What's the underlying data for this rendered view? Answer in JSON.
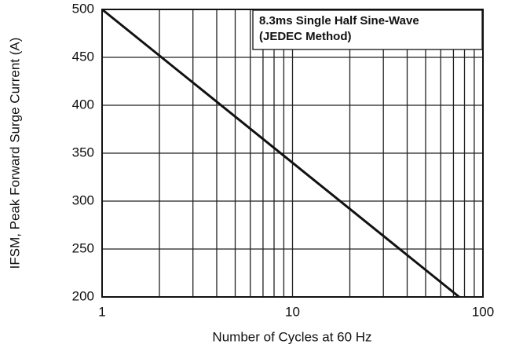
{
  "chart_data": {
    "type": "line",
    "annotation": [
      "8.3ms Single Half Sine-Wave",
      "(JEDEC Method)"
    ],
    "xlabel": "Number of Cycles at 60 Hz",
    "ylabel": "IFSM, Peak Forward Surge Current (A)",
    "xscale": "log",
    "xlim": [
      1,
      100
    ],
    "xticks": [
      1,
      10,
      100
    ],
    "x_minor_grid": [
      2,
      3,
      4,
      5,
      6,
      7,
      8,
      9,
      20,
      30,
      40,
      50,
      60,
      70,
      80,
      90
    ],
    "ylim": [
      200,
      500
    ],
    "yticks": [
      200,
      250,
      300,
      350,
      400,
      450,
      500
    ],
    "grid": true,
    "series": [
      {
        "color": "#111111",
        "x": [
          1,
          75
        ],
        "values": [
          500,
          200
        ]
      }
    ]
  }
}
